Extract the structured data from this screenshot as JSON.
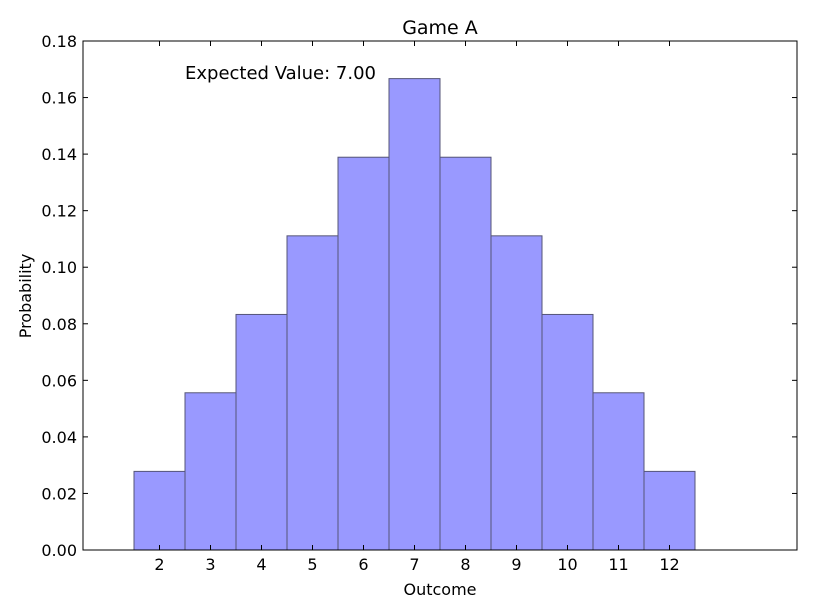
{
  "chart_data": {
    "type": "bar",
    "title": "Game A",
    "xlabel": "Outcome",
    "ylabel": "Probability",
    "categories": [
      "2",
      "3",
      "4",
      "5",
      "6",
      "7",
      "8",
      "9",
      "10",
      "11",
      "12"
    ],
    "values": [
      0.0278,
      0.0556,
      0.0833,
      0.1111,
      0.1389,
      0.1667,
      0.1389,
      0.1111,
      0.0833,
      0.0556,
      0.0278
    ],
    "xlim": [
      0.5,
      14.5
    ],
    "ylim": [
      0,
      0.18
    ],
    "yticks": [
      "0.00",
      "0.02",
      "0.04",
      "0.06",
      "0.08",
      "0.10",
      "0.12",
      "0.14",
      "0.16",
      "0.18"
    ],
    "grid": false,
    "annotation": "Expected Value: 7.00",
    "colors": {
      "bar_fill": "#9999ff",
      "bar_edge": "#555577",
      "annotation": "#0000dd",
      "axes": "#000000"
    }
  }
}
